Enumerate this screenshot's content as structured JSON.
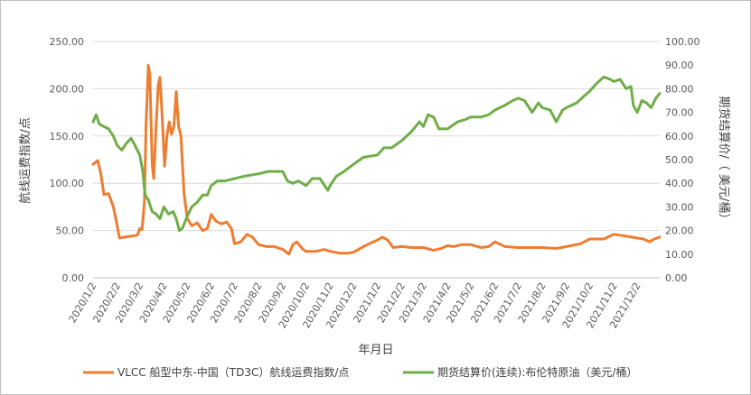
{
  "chart_data": {
    "type": "line",
    "xlabel": "年月日",
    "ylabel_left": "航线运费指数/点",
    "ylabel_right": "期货结算价/（ 美元/桶）",
    "ylim_left": [
      0,
      250
    ],
    "ylim_right": [
      0,
      100
    ],
    "left_ticks": [
      "0.00",
      "50.00",
      "100.00",
      "150.00",
      "200.00",
      "250.00"
    ],
    "right_ticks": [
      "0.00",
      "10.00",
      "20.00",
      "30.00",
      "40.00",
      "50.00",
      "60.00",
      "70.00",
      "80.00",
      "90.00",
      "100.00"
    ],
    "x_ticks": [
      "2020/1/2",
      "2020/2/2",
      "2020/3/2",
      "2020/4/2",
      "2020/5/2",
      "2020/6/2",
      "2020/7/2",
      "2020/8/2",
      "2020/9/2",
      "2020/10/2",
      "2020/11/2",
      "2020/12/2",
      "2021/1/2",
      "2021/2/2",
      "2021/3/2",
      "2021/4/2",
      "2021/5/2",
      "2021/6/2",
      "2021/7/2",
      "2021/8/2",
      "2021/9/2",
      "2021/10/2",
      "2021/11/2",
      "2021/12/2"
    ],
    "grid": "horizontal",
    "legend_position": "bottom",
    "series": [
      {
        "name": "VLCC 船型中东-中国（TD3C）航线运费指数/点",
        "axis": "left",
        "color": "#ed7d31",
        "points": [
          [
            "2020/1/2",
            120
          ],
          [
            "2020/1/8",
            124
          ],
          [
            "2020/1/12",
            110
          ],
          [
            "2020/1/16",
            88
          ],
          [
            "2020/1/22",
            89
          ],
          [
            "2020/1/28",
            75
          ],
          [
            "2020/2/2",
            55
          ],
          [
            "2020/2/5",
            42
          ],
          [
            "2020/2/12",
            43
          ],
          [
            "2020/2/20",
            44
          ],
          [
            "2020/2/28",
            45
          ],
          [
            "2020/3/2",
            52
          ],
          [
            "2020/3/5",
            51
          ],
          [
            "2020/3/8",
            80
          ],
          [
            "2020/3/10",
            158
          ],
          [
            "2020/3/13",
            225
          ],
          [
            "2020/3/15",
            215
          ],
          [
            "2020/3/18",
            120
          ],
          [
            "2020/3/20",
            105
          ],
          [
            "2020/3/23",
            160
          ],
          [
            "2020/3/26",
            205
          ],
          [
            "2020/3/28",
            212
          ],
          [
            "2020/3/31",
            170
          ],
          [
            "2020/4/3",
            118
          ],
          [
            "2020/4/6",
            150
          ],
          [
            "2020/4/9",
            165
          ],
          [
            "2020/4/12",
            152
          ],
          [
            "2020/4/15",
            160
          ],
          [
            "2020/4/18",
            197
          ],
          [
            "2020/4/21",
            160
          ],
          [
            "2020/4/24",
            150
          ],
          [
            "2020/4/28",
            90
          ],
          [
            "2020/5/2",
            63
          ],
          [
            "2020/5/8",
            55
          ],
          [
            "2020/5/15",
            58
          ],
          [
            "2020/5/22",
            50
          ],
          [
            "2020/5/28",
            52
          ],
          [
            "2020/6/2",
            67
          ],
          [
            "2020/6/8",
            60
          ],
          [
            "2020/6/15",
            57
          ],
          [
            "2020/6/22",
            59
          ],
          [
            "2020/6/28",
            52
          ],
          [
            "2020/7/2",
            36
          ],
          [
            "2020/7/10",
            38
          ],
          [
            "2020/7/18",
            46
          ],
          [
            "2020/7/25",
            43
          ],
          [
            "2020/8/2",
            35
          ],
          [
            "2020/8/12",
            33
          ],
          [
            "2020/8/22",
            33
          ],
          [
            "2020/9/2",
            30
          ],
          [
            "2020/9/10",
            25
          ],
          [
            "2020/9/15",
            35
          ],
          [
            "2020/9/20",
            38
          ],
          [
            "2020/9/28",
            30
          ],
          [
            "2020/10/2",
            28
          ],
          [
            "2020/10/15",
            28
          ],
          [
            "2020/10/25",
            30
          ],
          [
            "2020/11/2",
            28
          ],
          [
            "2020/11/15",
            26
          ],
          [
            "2020/11/25",
            26
          ],
          [
            "2020/12/2",
            27
          ],
          [
            "2020/12/15",
            33
          ],
          [
            "2020/12/25",
            37
          ],
          [
            "2021/1/2",
            40
          ],
          [
            "2021/1/8",
            43
          ],
          [
            "2021/1/15",
            40
          ],
          [
            "2021/1/22",
            32
          ],
          [
            "2021/2/2",
            33
          ],
          [
            "2021/2/15",
            32
          ],
          [
            "2021/3/2",
            32
          ],
          [
            "2021/3/15",
            29
          ],
          [
            "2021/3/25",
            31
          ],
          [
            "2021/4/2",
            34
          ],
          [
            "2021/4/10",
            33
          ],
          [
            "2021/4/20",
            35
          ],
          [
            "2021/5/2",
            35
          ],
          [
            "2021/5/15",
            32
          ],
          [
            "2021/5/25",
            33
          ],
          [
            "2021/6/2",
            38
          ],
          [
            "2021/6/15",
            33
          ],
          [
            "2021/7/2",
            32
          ],
          [
            "2021/7/20",
            32
          ],
          [
            "2021/8/2",
            32
          ],
          [
            "2021/8/20",
            31
          ],
          [
            "2021/9/2",
            33
          ],
          [
            "2021/9/20",
            36
          ],
          [
            "2021/10/2",
            41
          ],
          [
            "2021/10/20",
            41
          ],
          [
            "2021/11/2",
            46
          ],
          [
            "2021/11/10",
            45
          ],
          [
            "2021/11/25",
            43
          ],
          [
            "2021/12/2",
            42
          ],
          [
            "2021/12/10",
            41
          ],
          [
            "2021/12/18",
            38
          ],
          [
            "2021/12/24",
            41
          ],
          [
            "2021/12/31",
            43
          ]
        ]
      },
      {
        "name": "期货结算价(连续):布伦特原油（美元/桶）",
        "axis": "right",
        "color": "#70ad47",
        "points": [
          [
            "2020/1/2",
            66
          ],
          [
            "2020/1/6",
            69
          ],
          [
            "2020/1/10",
            65
          ],
          [
            "2020/1/16",
            64
          ],
          [
            "2020/1/22",
            63
          ],
          [
            "2020/1/28",
            60
          ],
          [
            "2020/2/2",
            56
          ],
          [
            "2020/2/8",
            54
          ],
          [
            "2020/2/14",
            57
          ],
          [
            "2020/2/20",
            59
          ],
          [
            "2020/2/25",
            56
          ],
          [
            "2020/3/2",
            52
          ],
          [
            "2020/3/6",
            45
          ],
          [
            "2020/3/9",
            35
          ],
          [
            "2020/3/13",
            33
          ],
          [
            "2020/3/18",
            28
          ],
          [
            "2020/3/23",
            27
          ],
          [
            "2020/3/28",
            25
          ],
          [
            "2020/4/2",
            30
          ],
          [
            "2020/4/8",
            27
          ],
          [
            "2020/4/14",
            28
          ],
          [
            "2020/4/18",
            25
          ],
          [
            "2020/4/22",
            20
          ],
          [
            "2020/4/26",
            21
          ],
          [
            "2020/5/2",
            26
          ],
          [
            "2020/5/8",
            30
          ],
          [
            "2020/5/15",
            32
          ],
          [
            "2020/5/22",
            35
          ],
          [
            "2020/5/28",
            35
          ],
          [
            "2020/6/2",
            39
          ],
          [
            "2020/6/10",
            41
          ],
          [
            "2020/6/20",
            41
          ],
          [
            "2020/7/2",
            42
          ],
          [
            "2020/7/15",
            43
          ],
          [
            "2020/8/2",
            44
          ],
          [
            "2020/8/15",
            45
          ],
          [
            "2020/8/28",
            45
          ],
          [
            "2020/9/2",
            45
          ],
          [
            "2020/9/8",
            41
          ],
          [
            "2020/9/15",
            40
          ],
          [
            "2020/9/22",
            41
          ],
          [
            "2020/10/2",
            39
          ],
          [
            "2020/10/10",
            42
          ],
          [
            "2020/10/20",
            42
          ],
          [
            "2020/10/30",
            37
          ],
          [
            "2020/11/2",
            39
          ],
          [
            "2020/11/10",
            43
          ],
          [
            "2020/11/20",
            45
          ],
          [
            "2020/12/2",
            48
          ],
          [
            "2020/12/15",
            51
          ],
          [
            "2021/1/2",
            52
          ],
          [
            "2021/1/10",
            55
          ],
          [
            "2021/1/20",
            55
          ],
          [
            "2021/2/2",
            58
          ],
          [
            "2021/2/15",
            62
          ],
          [
            "2021/2/25",
            66
          ],
          [
            "2021/3/2",
            64
          ],
          [
            "2021/3/8",
            69
          ],
          [
            "2021/3/15",
            68
          ],
          [
            "2021/3/22",
            63
          ],
          [
            "2021/4/2",
            63
          ],
          [
            "2021/4/15",
            66
          ],
          [
            "2021/4/25",
            67
          ],
          [
            "2021/5/2",
            68
          ],
          [
            "2021/5/15",
            68
          ],
          [
            "2021/5/25",
            69
          ],
          [
            "2021/6/2",
            71
          ],
          [
            "2021/6/15",
            73
          ],
          [
            "2021/6/25",
            75
          ],
          [
            "2021/7/2",
            76
          ],
          [
            "2021/7/10",
            75
          ],
          [
            "2021/7/20",
            70
          ],
          [
            "2021/7/28",
            74
          ],
          [
            "2021/8/2",
            72
          ],
          [
            "2021/8/12",
            71
          ],
          [
            "2021/8/20",
            66
          ],
          [
            "2021/8/28",
            71
          ],
          [
            "2021/9/2",
            72
          ],
          [
            "2021/9/15",
            74
          ],
          [
            "2021/9/25",
            77
          ],
          [
            "2021/10/2",
            79
          ],
          [
            "2021/10/10",
            82
          ],
          [
            "2021/10/20",
            85
          ],
          [
            "2021/10/28",
            84
          ],
          [
            "2021/11/2",
            83
          ],
          [
            "2021/11/10",
            84
          ],
          [
            "2021/11/18",
            80
          ],
          [
            "2021/11/24",
            81
          ],
          [
            "2021/11/27",
            73
          ],
          [
            "2021/12/2",
            70
          ],
          [
            "2021/12/8",
            75
          ],
          [
            "2021/12/14",
            74
          ],
          [
            "2021/12/20",
            72
          ],
          [
            "2021/12/26",
            76
          ],
          [
            "2021/12/31",
            78
          ]
        ]
      }
    ]
  }
}
